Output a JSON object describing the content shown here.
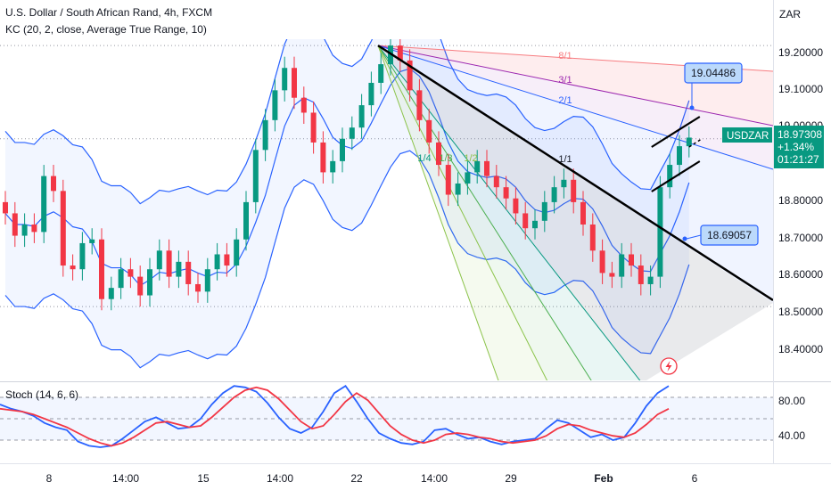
{
  "header": {
    "title": "U.S. Dollar / South African Rand, 4h, FXCM",
    "indicator": "KC (20, 2, close, Average True Range, 10)",
    "currency": "ZAR"
  },
  "price_axis": {
    "ticks": [
      "19.20000",
      "19.10000",
      "19.00000",
      "18.80000",
      "18.70000",
      "18.60000",
      "18.50000",
      "18.40000"
    ]
  },
  "stoch_axis": {
    "ticks": [
      "80.00",
      "40.00"
    ]
  },
  "time_axis": {
    "labels": [
      "8",
      "14:00",
      "15",
      "14:00",
      "22",
      "14:00",
      "29",
      "Feb",
      "6"
    ]
  },
  "price_badge": {
    "symbol": "USDZAR",
    "price": "18.97308",
    "change": "+1.34%",
    "countdown": "01:21:27"
  },
  "callouts": [
    {
      "label": "19.04486"
    },
    {
      "label": "18.69057"
    }
  ],
  "fan_labels": [
    "8/1",
    "3/1",
    "2/1",
    "1/1",
    "1/4",
    "1/3",
    "1/2"
  ],
  "stoch": {
    "label": "Stoch (14, 6, 6)"
  },
  "colors": {
    "up": "#089981",
    "down": "#f23645",
    "kc_band": "#2962ff",
    "stoch_k": "#2962ff",
    "stoch_d": "#f23645",
    "badge": "#089981"
  },
  "chart_data": [
    {
      "type": "candlestick",
      "title": "U.S. Dollar / South African Rand, 4h, FXCM",
      "ylim": [
        18.33,
        19.28
      ],
      "closes": [
        18.77,
        18.71,
        18.74,
        18.72,
        18.87,
        18.83,
        18.63,
        18.62,
        18.69,
        18.7,
        18.54,
        18.57,
        18.62,
        18.6,
        18.55,
        18.62,
        18.67,
        18.6,
        18.64,
        18.58,
        18.56,
        18.62,
        18.66,
        18.63,
        18.7,
        18.8,
        18.94,
        19.02,
        19.1,
        19.16,
        19.08,
        19.04,
        18.96,
        18.88,
        18.91,
        18.97,
        19.0,
        19.06,
        19.12,
        19.17,
        19.22,
        19.18,
        19.1,
        19.02,
        18.96,
        18.9,
        18.82,
        18.85,
        18.88,
        18.91,
        18.87,
        18.84,
        18.81,
        18.77,
        18.73,
        18.75,
        18.8,
        18.84,
        18.86,
        18.8,
        18.74,
        18.67,
        18.61,
        18.6,
        18.66,
        18.63,
        18.58,
        18.6,
        18.84,
        18.9,
        18.95,
        18.97308
      ]
    },
    {
      "type": "line",
      "title": "Stoch (14, 6, 6)",
      "ylim": [
        0,
        100
      ],
      "series": [
        {
          "values": [
            70,
            64,
            60,
            54,
            44,
            38,
            34,
            18,
            12,
            10,
            12,
            22,
            34,
            46,
            52,
            44,
            36,
            38,
            50,
            70,
            86,
            96,
            94,
            88,
            72,
            52,
            36,
            30,
            38,
            60,
            86,
            96,
            74,
            50,
            30,
            22,
            16,
            14,
            18,
            34,
            36,
            28,
            22,
            24,
            18,
            14,
            18,
            20,
            22,
            36,
            48,
            44,
            34,
            24,
            28,
            20,
            24,
            44,
            68,
            86,
            96
          ]
        },
        {
          "values": [
            64,
            62,
            60,
            56,
            50,
            44,
            38,
            30,
            22,
            16,
            12,
            16,
            24,
            34,
            44,
            46,
            42,
            38,
            40,
            52,
            66,
            80,
            90,
            94,
            90,
            78,
            62,
            46,
            36,
            40,
            56,
            74,
            86,
            76,
            58,
            40,
            28,
            20,
            16,
            20,
            28,
            30,
            28,
            24,
            22,
            18,
            16,
            18,
            20,
            26,
            36,
            42,
            40,
            34,
            30,
            26,
            24,
            30,
            42,
            56,
            64
          ]
        }
      ]
    }
  ]
}
